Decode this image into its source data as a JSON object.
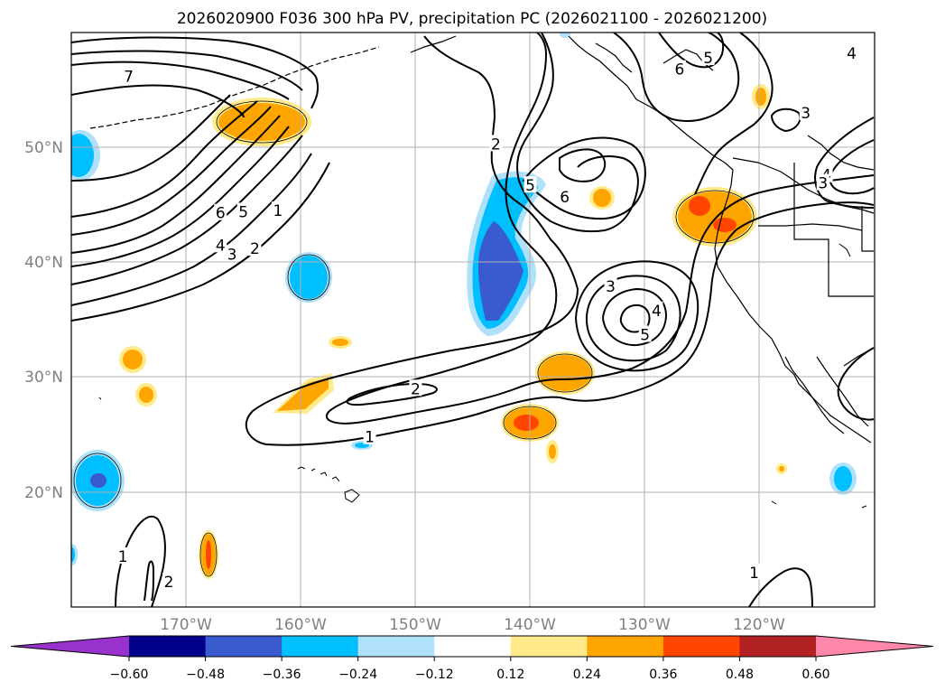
{
  "title": "2026020900 F036 300 hPa PV, precipitation PC (2026021100 - 2026021200)",
  "map": {
    "projection": "equirectangular",
    "lon_range": [
      -180,
      -110
    ],
    "lat_range": [
      10,
      60
    ],
    "grid": true,
    "lat_labels": [
      {
        "lat": 50,
        "text": "50°N"
      },
      {
        "lat": 40,
        "text": "40°N"
      },
      {
        "lat": 30,
        "text": "30°N"
      },
      {
        "lat": 20,
        "text": "20°N"
      }
    ],
    "lon_labels": [
      {
        "lon": -170,
        "text": "170°W"
      },
      {
        "lon": -160,
        "text": "160°W"
      },
      {
        "lon": -150,
        "text": "150°W"
      },
      {
        "lon": -140,
        "text": "140°W"
      },
      {
        "lon": -130,
        "text": "130°W"
      },
      {
        "lon": -120,
        "text": "120°W"
      }
    ]
  },
  "colorbar": {
    "colors": [
      "#9932cc",
      "#00008b",
      "#3a5bd0",
      "#00bfff",
      "#afe1fa",
      "#ffffff",
      "#ffeb8c",
      "#ffa500",
      "#ff4500",
      "#b22222",
      "#ff88aa"
    ],
    "ticks": [
      "−0.60",
      "−0.48",
      "−0.36",
      "−0.24",
      "−0.12",
      "0.12",
      "0.24",
      "0.36",
      "0.48",
      "0.60"
    ],
    "extend": "both"
  },
  "contour_labels": [
    {
      "text": "7",
      "lon": -175,
      "lat": 56.2
    },
    {
      "text": "6",
      "lon": -167,
      "lat": 44.3
    },
    {
      "text": "5",
      "lon": -165,
      "lat": 44.4
    },
    {
      "text": "1",
      "lon": -162,
      "lat": 44.5
    },
    {
      "text": "4",
      "lon": -167,
      "lat": 41.5
    },
    {
      "text": "3",
      "lon": -166,
      "lat": 40.7
    },
    {
      "text": "2",
      "lon": -164,
      "lat": 41.2
    },
    {
      "text": "2",
      "lon": -143,
      "lat": 50.3
    },
    {
      "text": "5",
      "lon": -140,
      "lat": 46.7
    },
    {
      "text": "6",
      "lon": -137,
      "lat": 45.7
    },
    {
      "text": "3",
      "lon": -133,
      "lat": 37.9
    },
    {
      "text": "4",
      "lon": -129,
      "lat": 35.8
    },
    {
      "text": "5",
      "lon": -130,
      "lat": 33.7
    },
    {
      "text": "2",
      "lon": -150,
      "lat": 29
    },
    {
      "text": "1",
      "lon": -154,
      "lat": 24.8
    },
    {
      "text": "6",
      "lon": -127,
      "lat": 56.8
    },
    {
      "text": "5",
      "lon": -124.5,
      "lat": 57.8
    },
    {
      "text": "4",
      "lon": -112,
      "lat": 58.2
    },
    {
      "text": "3",
      "lon": -116,
      "lat": 53
    },
    {
      "text": "4",
      "lon": -114.2,
      "lat": 47.6
    },
    {
      "text": "3",
      "lon": -114.5,
      "lat": 46.9
    },
    {
      "text": "1",
      "lon": -175.5,
      "lat": 14.4
    },
    {
      "text": "2",
      "lon": -171.5,
      "lat": 12.2
    },
    {
      "text": "1",
      "lon": -120.5,
      "lat": 13
    }
  ]
}
